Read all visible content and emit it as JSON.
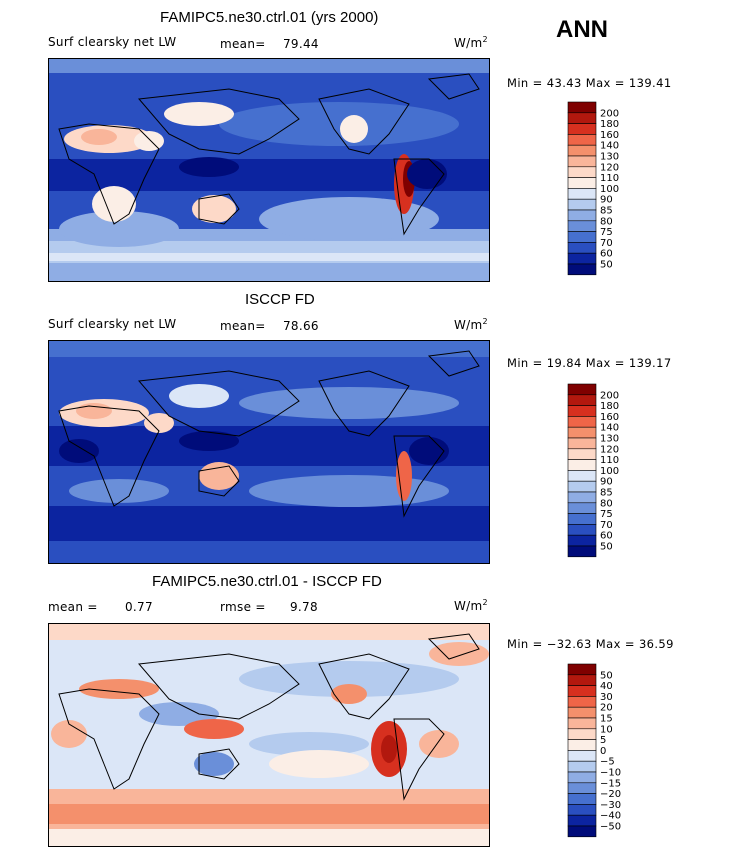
{
  "season": "ANN",
  "panels": [
    {
      "id": "model",
      "title": "FAMIPC5.ne30.ctrl.01 (yrs 2000)",
      "variable": "Surf clearsky net LW",
      "mean_label": "mean=",
      "mean_value": "79.44",
      "units": "W/m",
      "units_sup": "2",
      "min_label": "Min =",
      "min_value": "43.43",
      "max_label": "Max =",
      "max_value": "139.41",
      "levels": [
        "200",
        "180",
        "160",
        "140",
        "130",
        "120",
        "110",
        "100",
        "90",
        "85",
        "80",
        "75",
        "70",
        "60",
        "50"
      ],
      "palette": "abs"
    },
    {
      "id": "obs",
      "title": "ISCCP FD",
      "variable": "Surf clearsky net LW",
      "mean_label": "mean=",
      "mean_value": "78.66",
      "units": "W/m",
      "units_sup": "2",
      "min_label": "Min =",
      "min_value": "19.84",
      "max_label": "Max =",
      "max_value": "139.17",
      "levels": [
        "200",
        "180",
        "160",
        "140",
        "130",
        "120",
        "110",
        "100",
        "90",
        "85",
        "80",
        "75",
        "70",
        "60",
        "50"
      ],
      "palette": "abs"
    },
    {
      "id": "diff",
      "title": "FAMIPC5.ne30.ctrl.01 - ISCCP FD",
      "mean_label": "mean =",
      "mean_value": "0.77",
      "rmse_label": "rmse =",
      "rmse_value": "9.78",
      "units": "W/m",
      "units_sup": "2",
      "min_label": "Min =",
      "min_value": "−32.63",
      "max_label": "Max =",
      "max_value": "36.59",
      "levels": [
        "50",
        "40",
        "30",
        "20",
        "15",
        "10",
        "5",
        "0",
        "−5",
        "−10",
        "−15",
        "−20",
        "−30",
        "−40",
        "−50"
      ],
      "palette": "diff"
    }
  ],
  "colors": {
    "abs": [
      "#7f0000",
      "#b2180e",
      "#d7301f",
      "#ef6548",
      "#f4906c",
      "#f9b59a",
      "#fdd9c8",
      "#fbeee6",
      "#dbe6f7",
      "#b4cbee",
      "#8fade4",
      "#6a8fd9",
      "#4670cf",
      "#2a4fc0",
      "#0c24a0",
      "#000c7a"
    ],
    "diff": [
      "#7f0000",
      "#b2180e",
      "#d7301f",
      "#ef6548",
      "#f4906c",
      "#f9b59a",
      "#fdd9c8",
      "#fbeee6",
      "#dbe6f7",
      "#b4cbee",
      "#8fade4",
      "#6a8fd9",
      "#4670cf",
      "#2a4fc0",
      "#0c24a0",
      "#000c7a"
    ]
  }
}
